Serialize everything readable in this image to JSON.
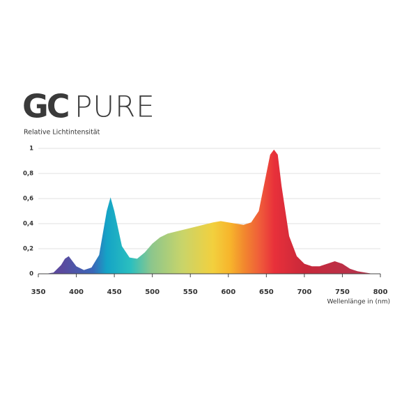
{
  "chart_data": {
    "type": "area",
    "logo": {
      "mark": "GC",
      "text": "PURE"
    },
    "y_label": "Relative Lichtintensität",
    "x_label": "Wellenlänge in (nm)",
    "x": [
      360,
      370,
      380,
      385,
      390,
      400,
      410,
      420,
      430,
      440,
      445,
      450,
      460,
      470,
      480,
      490,
      500,
      510,
      520,
      540,
      560,
      580,
      590,
      600,
      620,
      630,
      640,
      650,
      655,
      660,
      665,
      670,
      680,
      690,
      700,
      710,
      720,
      730,
      740,
      750,
      760,
      770,
      780,
      790,
      800
    ],
    "values": [
      0,
      0.01,
      0.07,
      0.12,
      0.14,
      0.06,
      0.03,
      0.05,
      0.15,
      0.5,
      0.61,
      0.5,
      0.22,
      0.13,
      0.12,
      0.17,
      0.24,
      0.29,
      0.32,
      0.35,
      0.38,
      0.41,
      0.42,
      0.41,
      0.39,
      0.41,
      0.5,
      0.8,
      0.95,
      0.99,
      0.95,
      0.7,
      0.3,
      0.14,
      0.08,
      0.06,
      0.06,
      0.08,
      0.1,
      0.08,
      0.04,
      0.02,
      0.01,
      0,
      0
    ],
    "xlim": [
      350,
      800
    ],
    "xticks": [
      350,
      400,
      450,
      500,
      550,
      600,
      650,
      700,
      750,
      800
    ],
    "ylim": [
      0,
      1
    ],
    "yticks": [
      0,
      {
        "value": 0.2,
        "label": "0,2"
      },
      {
        "value": 0.4,
        "label": "0,4"
      },
      {
        "value": 0.6,
        "label": "0,6"
      },
      {
        "value": 0.8,
        "label": "0,8"
      },
      1
    ],
    "grid": true
  }
}
